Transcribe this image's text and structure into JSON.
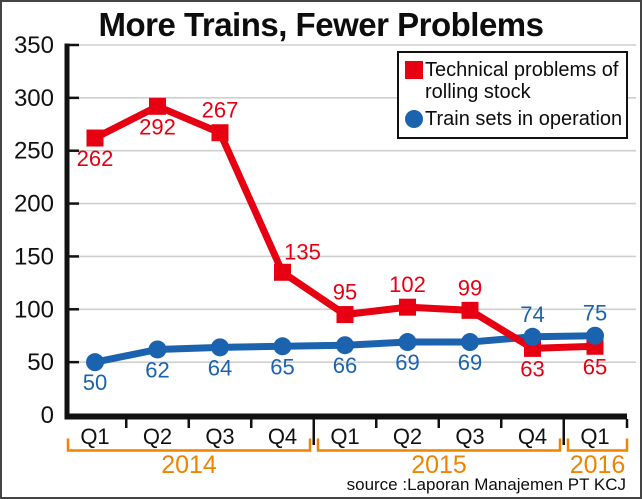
{
  "window": {
    "title": "More Trains, Fewer Problems"
  },
  "chart_data": {
    "type": "line",
    "title": "More Trains, Fewer Problems",
    "x_categories": [
      "Q1",
      "Q2",
      "Q3",
      "Q4",
      "Q1",
      "Q2",
      "Q3",
      "Q4",
      "Q1"
    ],
    "year_groups": [
      {
        "label": "2014",
        "start_index": 0,
        "end_index": 3
      },
      {
        "label": "2015",
        "start_index": 4,
        "end_index": 7
      },
      {
        "label": "2016",
        "start_index": 8,
        "end_index": 8
      }
    ],
    "ylim": [
      0,
      350
    ],
    "yticks": [
      0,
      50,
      100,
      150,
      200,
      250,
      300,
      350
    ],
    "grid": true,
    "legend_position": "top-right",
    "series": [
      {
        "id": "problems",
        "name": "Technical problems of rolling stock",
        "marker": "square",
        "color": "#e60012",
        "values": [
          262,
          292,
          267,
          135,
          95,
          102,
          99,
          63,
          65
        ],
        "value_label_positions": [
          "below",
          "below",
          "above",
          "above-right",
          "above",
          "above",
          "above",
          "below",
          "below"
        ]
      },
      {
        "id": "trains",
        "name": "Train sets in operation",
        "marker": "circle",
        "color": "#1b63ae",
        "values": [
          50,
          62,
          64,
          65,
          66,
          69,
          69,
          74,
          75
        ],
        "value_label_positions": [
          "below",
          "below",
          "below",
          "below",
          "below",
          "below",
          "below",
          "above",
          "above"
        ]
      }
    ],
    "year_label_color": "#f08300",
    "axis_color": "#111111",
    "gridline_color": "#cfcfcf",
    "source": "source :Laporan Manajemen PT KCJ"
  },
  "legend": {
    "items": [
      {
        "label": "Technical problems of rolling stock"
      },
      {
        "label": "Train sets in operation"
      }
    ]
  },
  "source_note": "source :Laporan Manajemen PT KCJ"
}
